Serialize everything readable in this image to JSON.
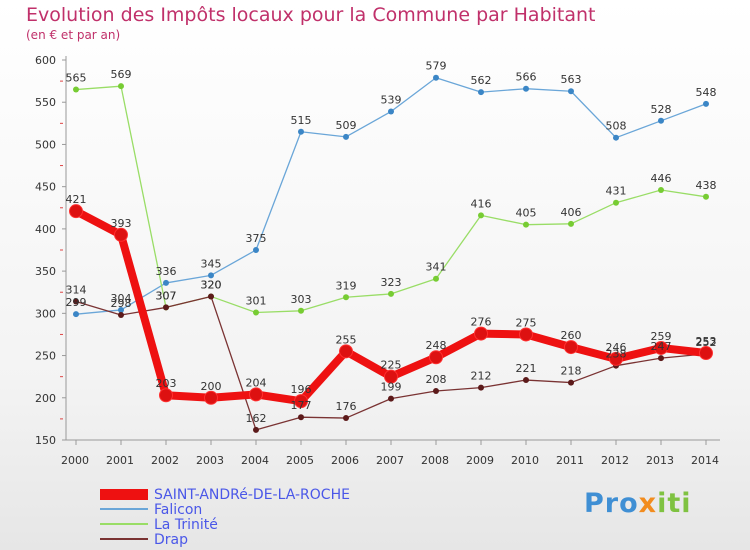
{
  "chart_data": {
    "type": "line",
    "title": "Evolution des Impôts locaux pour la Commune par Habitant",
    "subtitle": "(en € et par an)",
    "xlabel": "",
    "ylabel": "",
    "ylim": [
      150,
      600
    ],
    "yticks": [
      150,
      200,
      250,
      300,
      350,
      400,
      450,
      500,
      550,
      600
    ],
    "categories": [
      "2000",
      "2001",
      "2002",
      "2003",
      "2004",
      "2005",
      "2006",
      "2007",
      "2008",
      "2009",
      "2010",
      "2011",
      "2012",
      "2013",
      "2014"
    ],
    "series": [
      {
        "name": "SAINT-ANDRé-DE-LA-ROCHE",
        "color": "#ee1111",
        "marker_color": "#dd1111",
        "values": [
          421,
          393,
          203,
          200,
          204,
          196,
          255,
          225,
          248,
          276,
          275,
          260,
          246,
          259,
          253
        ]
      },
      {
        "name": "Falicon",
        "color": "#6aa6d8",
        "marker_color": "#3b86c6",
        "values": [
          299,
          304,
          336,
          345,
          375,
          515,
          509,
          539,
          579,
          562,
          566,
          563,
          508,
          528,
          548
        ]
      },
      {
        "name": "La Trinité",
        "color": "#99dd66",
        "marker_color": "#77cc33",
        "values": [
          565,
          569,
          307,
          320,
          301,
          303,
          319,
          323,
          341,
          416,
          405,
          406,
          431,
          446,
          438
        ]
      },
      {
        "name": "Drap",
        "color": "#7a3333",
        "marker_color": "#5c1a1a",
        "values": [
          314,
          298,
          307,
          320,
          162,
          177,
          176,
          199,
          208,
          212,
          221,
          218,
          238,
          247,
          252
        ]
      }
    ]
  },
  "logo": {
    "part1": "Pro",
    "part2": "x",
    "part3": "iti"
  }
}
